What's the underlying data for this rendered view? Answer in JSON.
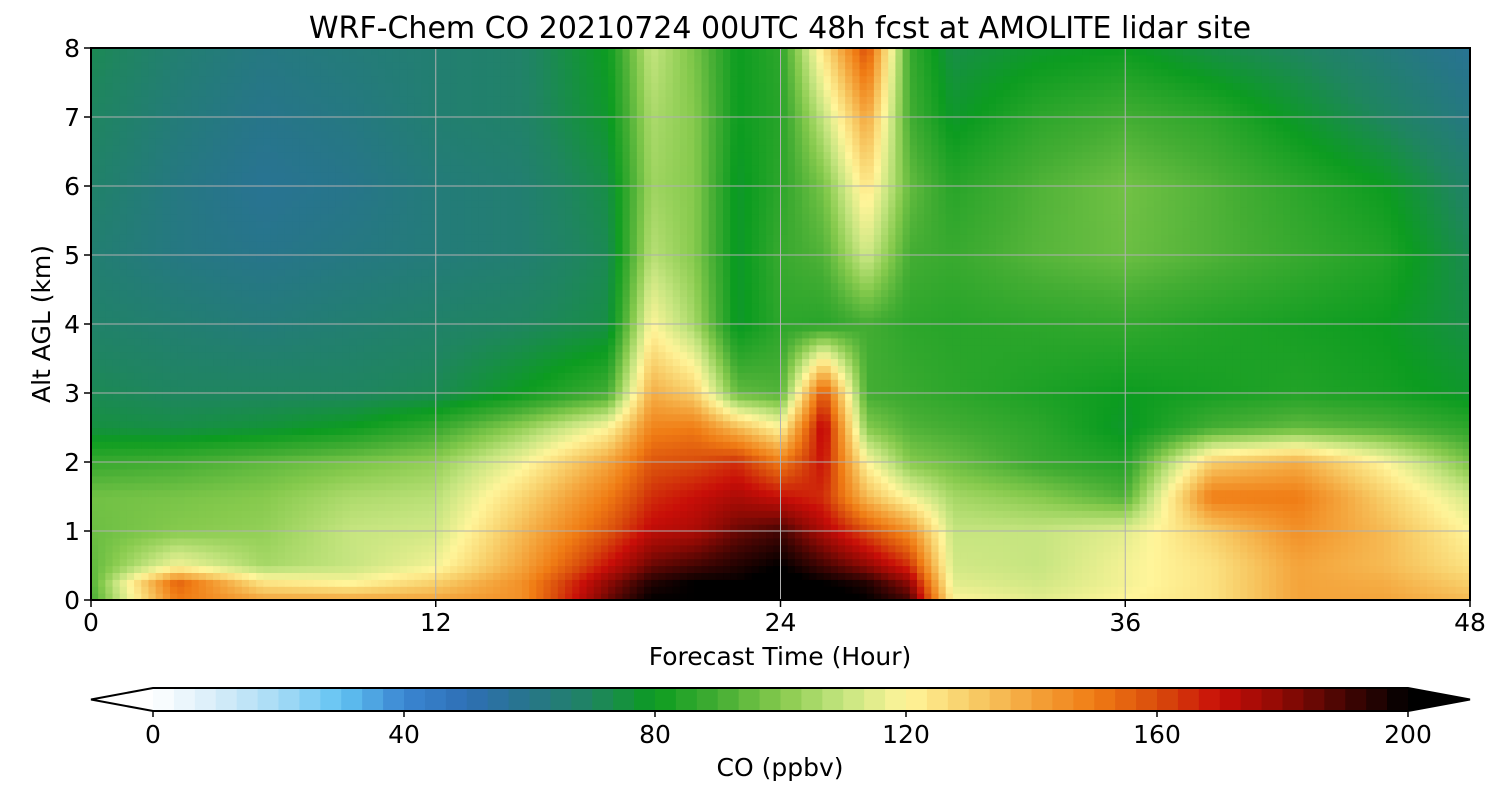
{
  "chart_data": {
    "type": "heatmap",
    "title": "WRF-Chem CO  20210724 00UTC 48h fcst at AMOLITE lidar site",
    "xlabel": "Forecast Time (Hour)",
    "ylabel": "Alt AGL (km)",
    "xlim": [
      0,
      48
    ],
    "ylim": [
      0,
      8
    ],
    "x_ticks": [
      "0",
      "12",
      "24",
      "36",
      "48"
    ],
    "y_ticks": [
      "0",
      "1",
      "2",
      "3",
      "4",
      "5",
      "6",
      "7",
      "8"
    ],
    "grid": true,
    "x": [
      0,
      3,
      6,
      9,
      12,
      15,
      18,
      19.5,
      21,
      22.5,
      24,
      25.5,
      27,
      28.5,
      30,
      33,
      36,
      39,
      42,
      45,
      48
    ],
    "y": [
      0,
      0.25,
      0.5,
      1,
      1.5,
      2,
      2.5,
      3,
      4,
      5,
      6,
      7,
      8
    ],
    "values": [
      [
        90,
        150,
        140,
        140,
        140,
        145,
        185,
        200,
        200,
        200,
        205,
        205,
        200,
        190,
        120,
        115,
        120,
        125,
        140,
        140,
        135
      ],
      [
        92,
        155,
        125,
        120,
        130,
        145,
        180,
        195,
        200,
        200,
        205,
        200,
        195,
        180,
        115,
        112,
        118,
        125,
        140,
        138,
        130
      ],
      [
        94,
        118,
        105,
        110,
        118,
        140,
        170,
        185,
        190,
        195,
        200,
        190,
        180,
        165,
        112,
        110,
        118,
        125,
        140,
        135,
        125
      ],
      [
        96,
        100,
        102,
        110,
        112,
        135,
        158,
        172,
        175,
        185,
        190,
        175,
        160,
        145,
        110,
        110,
        115,
        130,
        145,
        135,
        120
      ],
      [
        97,
        98,
        100,
        106,
        108,
        128,
        150,
        165,
        170,
        175,
        170,
        165,
        135,
        118,
        105,
        100,
        92,
        150,
        150,
        130,
        112
      ],
      [
        88,
        90,
        94,
        98,
        102,
        118,
        140,
        158,
        160,
        165,
        150,
        170,
        120,
        100,
        96,
        88,
        84,
        130,
        138,
        120,
        98
      ],
      [
        75,
        74,
        76,
        80,
        88,
        102,
        120,
        148,
        150,
        135,
        120,
        175,
        100,
        92,
        90,
        86,
        78,
        90,
        95,
        92,
        86
      ],
      [
        72,
        70,
        70,
        70,
        72,
        80,
        90,
        138,
        130,
        95,
        92,
        160,
        90,
        88,
        86,
        83,
        80,
        82,
        84,
        82,
        78
      ],
      [
        68,
        66,
        64,
        66,
        68,
        70,
        74,
        120,
        105,
        78,
        86,
        85,
        90,
        86,
        85,
        86,
        87,
        84,
        82,
        80,
        74
      ],
      [
        66,
        62,
        60,
        62,
        64,
        66,
        72,
        108,
        100,
        78,
        88,
        92,
        112,
        90,
        88,
        93,
        96,
        92,
        88,
        84,
        72
      ],
      [
        68,
        62,
        58,
        60,
        64,
        66,
        74,
        104,
        100,
        78,
        86,
        98,
        125,
        95,
        85,
        92,
        97,
        92,
        86,
        80,
        68
      ],
      [
        70,
        64,
        60,
        62,
        66,
        68,
        78,
        106,
        100,
        80,
        85,
        110,
        140,
        90,
        78,
        86,
        90,
        86,
        78,
        70,
        62
      ],
      [
        72,
        66,
        62,
        64,
        66,
        68,
        80,
        110,
        98,
        80,
        86,
        125,
        160,
        88,
        74,
        78,
        80,
        74,
        70,
        64,
        58
      ]
    ],
    "colorbar": {
      "label": "CO  (ppbv)",
      "range": [
        0,
        200
      ],
      "ticks": [
        "0",
        "40",
        "80",
        "120",
        "160",
        "200"
      ],
      "extend": "both",
      "colors": [
        "#ffffff",
        "#d7edf9",
        "#a6dbf5",
        "#62c3f2",
        "#3a86d2",
        "#2e6fb5",
        "#27758a",
        "#1f8560",
        "#0c9c20",
        "#43ad33",
        "#86ca4d",
        "#c6e580",
        "#fff59a",
        "#f8cf6a",
        "#f4a43b",
        "#f07c14",
        "#d94c0c",
        "#c80e08",
        "#8e0a04",
        "#430503",
        "#000000"
      ]
    }
  }
}
